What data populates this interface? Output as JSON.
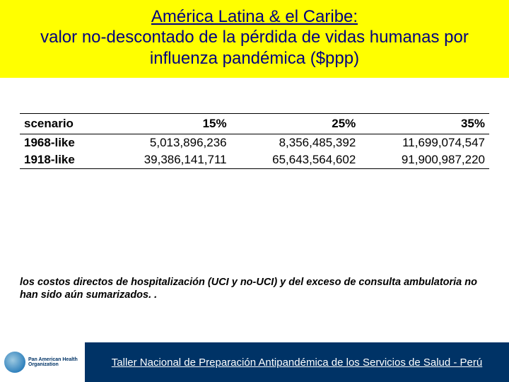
{
  "header": {
    "line1": "América Latina & el Caribe:",
    "line2": "valor no-descontado de la pérdida de vidas humanas por influenza pandémica ($ppp)"
  },
  "table": {
    "columns": [
      "scenario",
      "15%",
      "25%",
      "35%"
    ],
    "rows": [
      {
        "label": "1968-like",
        "c1": "5,013,896,236",
        "c2": "8,356,485,392",
        "c3": "11,699,074,547"
      },
      {
        "label": "1918-like",
        "c1": "39,386,141,711",
        "c2": "65,643,564,602",
        "c3": "91,900,987,220"
      }
    ],
    "font_size_pt": 17,
    "border_color": "#000000",
    "text_color": "#000000"
  },
  "note": "los costos directos de hospitalización (UCI y no-UCI) y del exceso de consulta ambulatoria no han sido aún sumarizados. .",
  "footer": {
    "logo_lines": "Pan American\nHealth\nOrganization",
    "text": "Taller Nacional de Preparación Antipandémica de los Servicios de Salud - Perú",
    "bar_bg": "#003366",
    "bar_text_color": "#ffffff"
  },
  "colors": {
    "header_bg": "#ffff00",
    "title_color": "#000080",
    "page_bg": "#ffffff"
  }
}
